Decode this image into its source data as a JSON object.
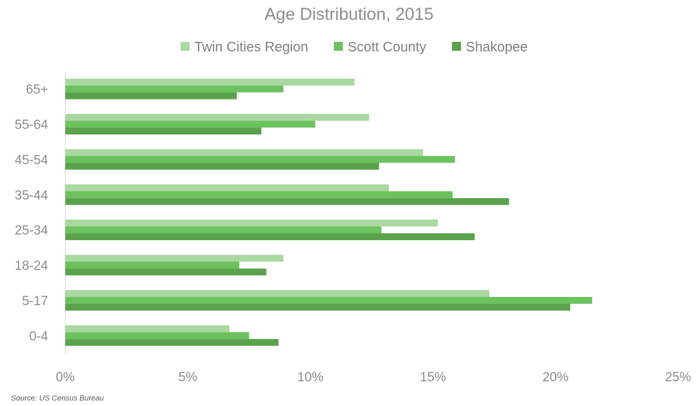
{
  "chart_data": {
    "type": "bar",
    "orientation": "horizontal",
    "title": "Age Distribution, 2015",
    "categories": [
      "0-4",
      "5-17",
      "18-24",
      "25-34",
      "35-44",
      "45-54",
      "55-64",
      "65+"
    ],
    "series": [
      {
        "name": "Twin Cities Region",
        "color": "#a9d8a0",
        "values": [
          6.7,
          17.3,
          8.9,
          15.2,
          13.2,
          14.6,
          12.4,
          11.8
        ]
      },
      {
        "name": "Scott County",
        "color": "#6cc25e",
        "values": [
          7.5,
          21.5,
          7.1,
          12.9,
          15.8,
          15.9,
          10.2,
          8.9
        ]
      },
      {
        "name": "Shakopee",
        "color": "#5aa24b",
        "values": [
          8.7,
          20.6,
          8.2,
          16.7,
          18.1,
          12.8,
          8.0,
          7.0
        ]
      }
    ],
    "xlim": [
      0,
      25
    ],
    "xticks": [
      "0%",
      "5%",
      "10%",
      "15%",
      "20%",
      "25%"
    ],
    "legend_position": "top",
    "grid": false
  },
  "footer": {
    "source": "Source: US Census Bureau"
  }
}
